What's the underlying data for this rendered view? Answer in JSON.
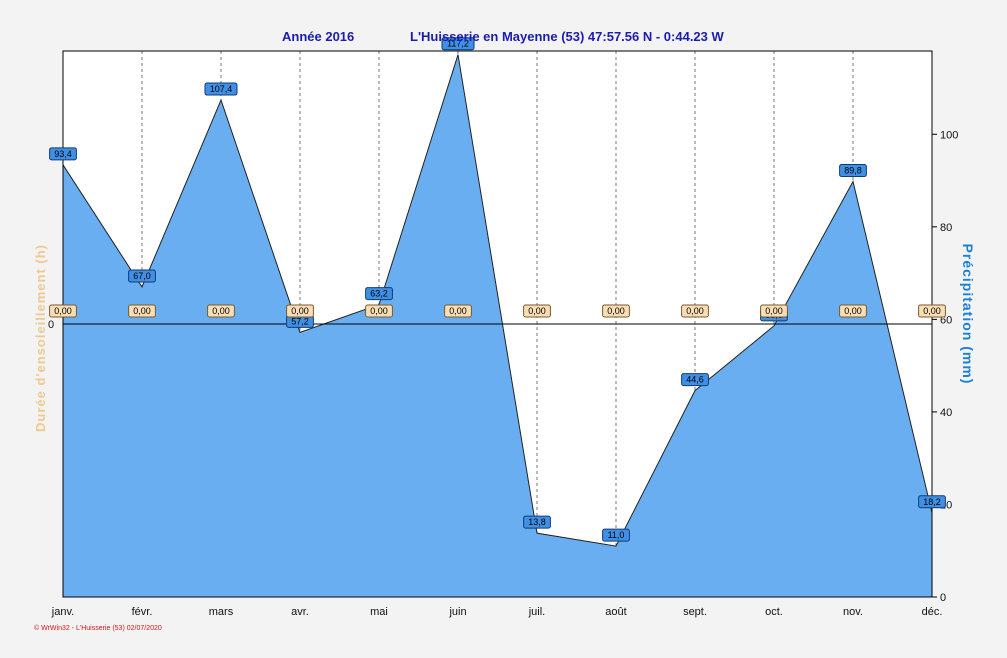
{
  "header": {
    "year_label": "Année  2016",
    "station_label": "L'Huisserie en Mayenne (53) 47:57.56 N - 0:44.23 W"
  },
  "footer": {
    "credit": "© WrWin32 - L'Huisserie (53)  02/07/2020"
  },
  "colors": {
    "area": "#6aaef2",
    "label_blue": "#3f8fe4",
    "label_sun": "#f9ddb4",
    "title": "#1c1cb0",
    "left_axis": "#f0c890",
    "right_axis": "#1a80d8"
  },
  "chart_data": {
    "type": "area",
    "categories": [
      "janv.",
      "févr.",
      "mars",
      "avr.",
      "mai",
      "juin",
      "juil.",
      "août",
      "sept.",
      "oct.",
      "nov.",
      "déc."
    ],
    "series": [
      {
        "name": "Précipitation",
        "axis": "right",
        "values": [
          93.4,
          67.0,
          107.4,
          57.2,
          63.2,
          117.2,
          13.8,
          11.0,
          44.6,
          58.6,
          89.8,
          18.2
        ],
        "labels": [
          "93,4",
          "67,0",
          "107,4",
          "57,2",
          "63,2",
          "117,2",
          "13,8",
          "11,0",
          "44,6",
          "58,6",
          "89,8",
          "18,2"
        ]
      },
      {
        "name": "Durée d'ensoleillement",
        "axis": "left",
        "values": [
          0,
          0,
          0,
          0,
          0,
          0,
          0,
          0,
          0,
          0,
          0,
          0
        ],
        "labels": [
          "0,00",
          "0,00",
          "0,00",
          "0,00",
          "0,00",
          "0,00",
          "0,00",
          "0,00",
          "0,00",
          "0,00",
          "0,00",
          "0,00"
        ]
      }
    ],
    "y_left": {
      "label": "Durée d'ensoleillement  (h)",
      "ticks": [
        "0"
      ],
      "zero_value": 0
    },
    "y_right": {
      "label": "Précipitation  (mm)",
      "ylim": [
        0,
        118
      ],
      "ticks": [
        0,
        20,
        40,
        60,
        80,
        100
      ]
    },
    "grid": "vertical dashed lines at months"
  }
}
